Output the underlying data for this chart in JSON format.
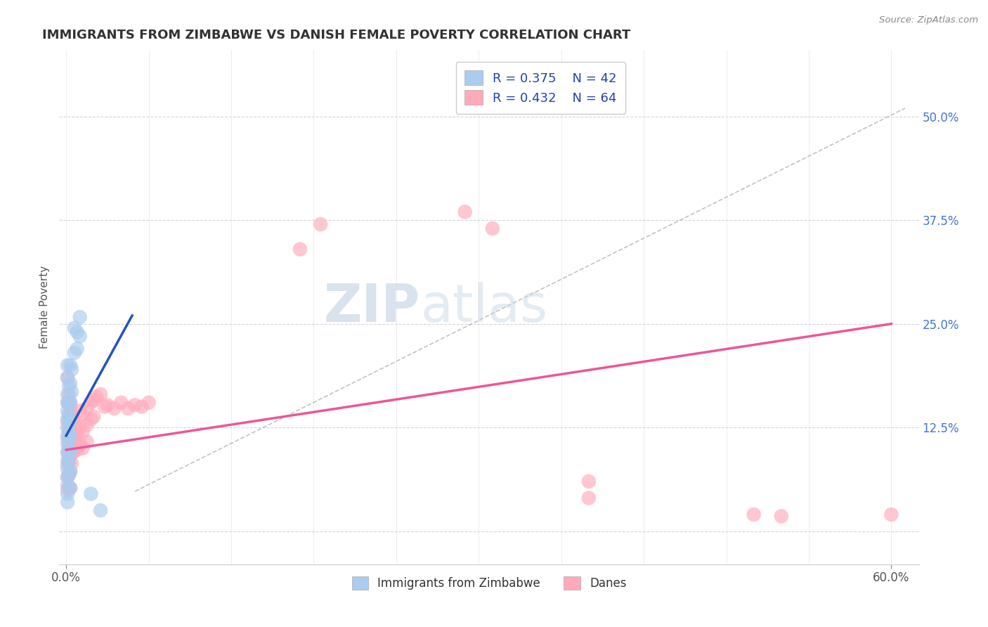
{
  "title": "IMMIGRANTS FROM ZIMBABWE VS DANISH FEMALE POVERTY CORRELATION CHART",
  "source": "Source: ZipAtlas.com",
  "ylabel": "Female Poverty",
  "xlim": [
    -0.005,
    0.62
  ],
  "ylim": [
    -0.04,
    0.58
  ],
  "yticks": [
    0.0,
    0.125,
    0.25,
    0.375,
    0.5
  ],
  "ytick_labels_right": [
    "",
    "12.5%",
    "25.0%",
    "37.5%",
    "50.0%"
  ],
  "xtick_positions": [
    0.0,
    0.6
  ],
  "xtick_labels": [
    "0.0%",
    "60.0%"
  ],
  "grid_color": "#cccccc",
  "background_color": "#ffffff",
  "blue_color": "#aaccee",
  "pink_color": "#ffaabb",
  "blue_line_color": "#2255bb",
  "pink_line_color": "#ee5599",
  "trend_line_color": "#bbbbbb",
  "watermark_zip": "ZIP",
  "watermark_atlas": "atlas",
  "blue_scatter": [
    [
      0.001,
      0.2
    ],
    [
      0.001,
      0.185
    ],
    [
      0.001,
      0.165
    ],
    [
      0.001,
      0.155
    ],
    [
      0.001,
      0.145
    ],
    [
      0.001,
      0.135
    ],
    [
      0.001,
      0.125
    ],
    [
      0.001,
      0.115
    ],
    [
      0.001,
      0.105
    ],
    [
      0.001,
      0.095
    ],
    [
      0.001,
      0.085
    ],
    [
      0.001,
      0.075
    ],
    [
      0.001,
      0.065
    ],
    [
      0.001,
      0.055
    ],
    [
      0.001,
      0.045
    ],
    [
      0.001,
      0.035
    ],
    [
      0.002,
      0.175
    ],
    [
      0.002,
      0.155
    ],
    [
      0.002,
      0.138
    ],
    [
      0.002,
      0.12
    ],
    [
      0.002,
      0.108
    ],
    [
      0.002,
      0.095
    ],
    [
      0.002,
      0.082
    ],
    [
      0.002,
      0.068
    ],
    [
      0.003,
      0.2
    ],
    [
      0.003,
      0.178
    ],
    [
      0.003,
      0.155
    ],
    [
      0.003,
      0.132
    ],
    [
      0.003,
      0.115
    ],
    [
      0.003,
      0.095
    ],
    [
      0.003,
      0.072
    ],
    [
      0.003,
      0.052
    ],
    [
      0.004,
      0.195
    ],
    [
      0.004,
      0.168
    ],
    [
      0.006,
      0.245
    ],
    [
      0.006,
      0.215
    ],
    [
      0.008,
      0.24
    ],
    [
      0.008,
      0.22
    ],
    [
      0.01,
      0.258
    ],
    [
      0.01,
      0.235
    ],
    [
      0.025,
      0.025
    ],
    [
      0.018,
      0.045
    ]
  ],
  "pink_scatter": [
    [
      0.001,
      0.185
    ],
    [
      0.001,
      0.155
    ],
    [
      0.001,
      0.132
    ],
    [
      0.001,
      0.112
    ],
    [
      0.001,
      0.095
    ],
    [
      0.001,
      0.08
    ],
    [
      0.001,
      0.065
    ],
    [
      0.001,
      0.05
    ],
    [
      0.002,
      0.165
    ],
    [
      0.002,
      0.142
    ],
    [
      0.002,
      0.122
    ],
    [
      0.002,
      0.102
    ],
    [
      0.002,
      0.085
    ],
    [
      0.002,
      0.068
    ],
    [
      0.002,
      0.052
    ],
    [
      0.003,
      0.155
    ],
    [
      0.003,
      0.132
    ],
    [
      0.003,
      0.112
    ],
    [
      0.003,
      0.092
    ],
    [
      0.003,
      0.072
    ],
    [
      0.003,
      0.052
    ],
    [
      0.004,
      0.145
    ],
    [
      0.004,
      0.122
    ],
    [
      0.004,
      0.102
    ],
    [
      0.004,
      0.082
    ],
    [
      0.005,
      0.138
    ],
    [
      0.005,
      0.115
    ],
    [
      0.005,
      0.095
    ],
    [
      0.006,
      0.132
    ],
    [
      0.006,
      0.112
    ],
    [
      0.007,
      0.125
    ],
    [
      0.007,
      0.105
    ],
    [
      0.008,
      0.118
    ],
    [
      0.008,
      0.098
    ],
    [
      0.01,
      0.145
    ],
    [
      0.01,
      0.125
    ],
    [
      0.01,
      0.105
    ],
    [
      0.012,
      0.14
    ],
    [
      0.012,
      0.12
    ],
    [
      0.012,
      0.1
    ],
    [
      0.015,
      0.148
    ],
    [
      0.015,
      0.128
    ],
    [
      0.015,
      0.108
    ],
    [
      0.018,
      0.155
    ],
    [
      0.018,
      0.135
    ],
    [
      0.02,
      0.158
    ],
    [
      0.02,
      0.138
    ],
    [
      0.022,
      0.162
    ],
    [
      0.025,
      0.165
    ],
    [
      0.028,
      0.15
    ],
    [
      0.03,
      0.152
    ],
    [
      0.035,
      0.148
    ],
    [
      0.04,
      0.155
    ],
    [
      0.045,
      0.148
    ],
    [
      0.05,
      0.152
    ],
    [
      0.055,
      0.15
    ],
    [
      0.06,
      0.155
    ],
    [
      0.29,
      0.385
    ],
    [
      0.31,
      0.365
    ],
    [
      0.5,
      0.02
    ],
    [
      0.52,
      0.018
    ],
    [
      0.38,
      0.06
    ],
    [
      0.38,
      0.04
    ],
    [
      0.17,
      0.34
    ],
    [
      0.185,
      0.37
    ],
    [
      0.6,
      0.02
    ]
  ],
  "blue_trend_x": [
    0.0,
    0.048
  ],
  "blue_trend_y": [
    0.115,
    0.26
  ],
  "pink_trend_x": [
    0.0,
    0.6
  ],
  "pink_trend_y": [
    0.098,
    0.25
  ],
  "dashed_trend_x": [
    0.05,
    0.61
  ],
  "dashed_trend_y": [
    0.048,
    0.51
  ]
}
